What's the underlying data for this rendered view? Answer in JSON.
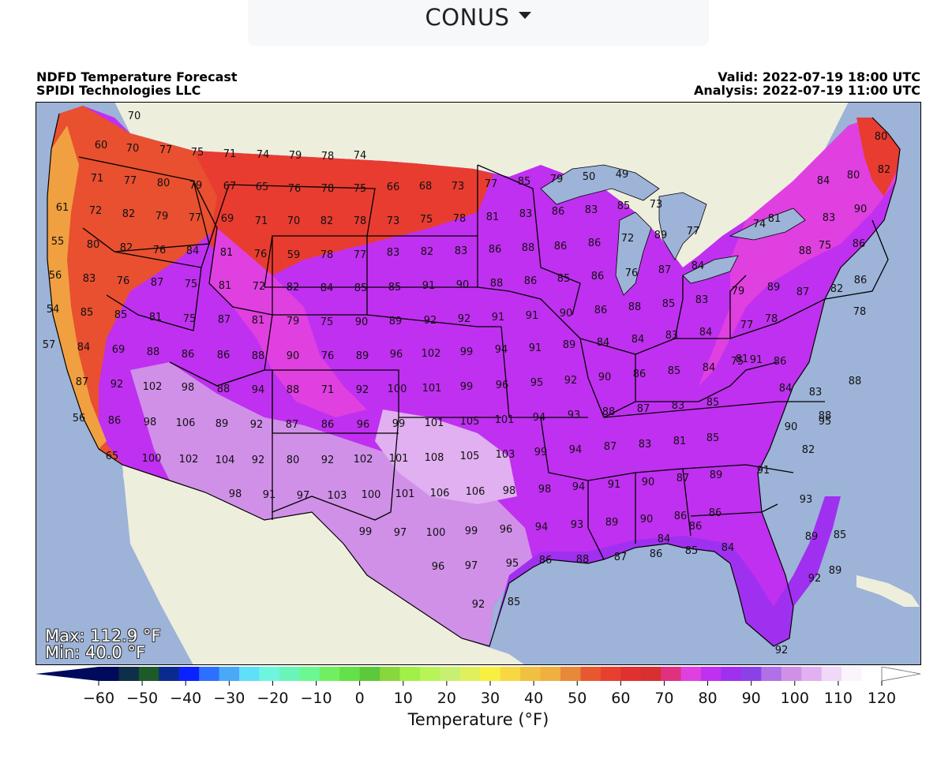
{
  "region_selector": {
    "value": "CONUS"
  },
  "header": {
    "title": "NDFD Temperature Forecast",
    "org": "SPIDI Technologies LLC",
    "valid": "Valid: 2022-07-19 18:00 UTC",
    "analysis": "Analysis: 2022-07-19 11:00 UTC"
  },
  "stats": {
    "max": "Max: 112.9 °F",
    "min": "Min: 40.0 °F"
  },
  "colorbar": {
    "label": "Temperature (°F)",
    "ticks": [
      "−60",
      "−50",
      "−40",
      "−30",
      "−20",
      "−10",
      "0",
      "10",
      "20",
      "30",
      "40",
      "50",
      "60",
      "70",
      "80",
      "90",
      "100",
      "110",
      "120"
    ],
    "colors": [
      "#000a5c",
      "#0d2f48",
      "#1c5a2a",
      "#0a2a8f",
      "#0a22ff",
      "#2d70ff",
      "#4aa8f8",
      "#5fe0f8",
      "#6ef5e0",
      "#6af5b8",
      "#6cf890",
      "#70f060",
      "#64e048",
      "#5cc83c",
      "#88d83c",
      "#a0f048",
      "#b8f458",
      "#c8f070",
      "#e0f05c",
      "#f8f040",
      "#f8d840",
      "#f0c040",
      "#f0b040",
      "#e88838",
      "#e85830",
      "#e84030",
      "#e03030",
      "#d83030",
      "#e03080",
      "#e040e0",
      "#c030f0",
      "#a030f0",
      "#8c40e8",
      "#b070e8",
      "#d090e8",
      "#e0b0f0",
      "#f0d8f8",
      "#fcf4fc",
      "#ffffff"
    ]
  },
  "city_temps": [
    {
      "label": "70",
      "v": 70
    },
    {
      "label": "60",
      "v": 60
    },
    {
      "label": "70",
      "v": 70
    },
    {
      "label": "77",
      "v": 77
    },
    {
      "label": "75",
      "v": 75
    },
    {
      "label": "71",
      "v": 71
    },
    {
      "label": "74",
      "v": 74
    },
    {
      "label": "79",
      "v": 79
    },
    {
      "label": "78",
      "v": 78
    },
    {
      "label": "74",
      "v": 74
    },
    {
      "label": "71",
      "v": 71
    },
    {
      "label": "77",
      "v": 77
    },
    {
      "label": "80",
      "v": 80
    },
    {
      "label": "79",
      "v": 79
    },
    {
      "label": "67",
      "v": 67
    },
    {
      "label": "65",
      "v": 65
    },
    {
      "label": "76",
      "v": 76
    },
    {
      "label": "78",
      "v": 78
    },
    {
      "label": "75",
      "v": 75
    },
    {
      "label": "66",
      "v": 66
    },
    {
      "label": "68",
      "v": 68
    },
    {
      "label": "73",
      "v": 73
    },
    {
      "label": "77",
      "v": 77
    },
    {
      "label": "85",
      "v": 85
    },
    {
      "label": "79",
      "v": 79
    },
    {
      "label": "50",
      "v": 50
    },
    {
      "label": "49",
      "v": 49
    },
    {
      "label": "61",
      "v": 61
    },
    {
      "label": "72",
      "v": 72
    },
    {
      "label": "82",
      "v": 82
    },
    {
      "label": "79",
      "v": 79
    },
    {
      "label": "77",
      "v": 77
    },
    {
      "label": "69",
      "v": 69
    },
    {
      "label": "71",
      "v": 71
    },
    {
      "label": "70",
      "v": 70
    },
    {
      "label": "82",
      "v": 82
    },
    {
      "label": "78",
      "v": 78
    },
    {
      "label": "73",
      "v": 73
    },
    {
      "label": "75",
      "v": 75
    },
    {
      "label": "78",
      "v": 78
    },
    {
      "label": "81",
      "v": 81
    },
    {
      "label": "83",
      "v": 83
    },
    {
      "label": "86",
      "v": 86
    },
    {
      "label": "83",
      "v": 83
    },
    {
      "label": "85",
      "v": 85
    },
    {
      "label": "73",
      "v": 73
    },
    {
      "label": "55",
      "v": 55
    },
    {
      "label": "80",
      "v": 80
    },
    {
      "label": "82",
      "v": 82
    },
    {
      "label": "76",
      "v": 76
    },
    {
      "label": "84",
      "v": 84
    },
    {
      "label": "81",
      "v": 81
    },
    {
      "label": "76",
      "v": 76
    },
    {
      "label": "59",
      "v": 59
    },
    {
      "label": "78",
      "v": 78
    },
    {
      "label": "77",
      "v": 77
    },
    {
      "label": "83",
      "v": 83
    },
    {
      "label": "82",
      "v": 82
    },
    {
      "label": "83",
      "v": 83
    },
    {
      "label": "86",
      "v": 86
    },
    {
      "label": "88",
      "v": 88
    },
    {
      "label": "86",
      "v": 86
    },
    {
      "label": "86",
      "v": 86
    },
    {
      "label": "72",
      "v": 72
    },
    {
      "label": "89",
      "v": 89
    },
    {
      "label": "77",
      "v": 77
    },
    {
      "label": "56",
      "v": 56
    },
    {
      "label": "83",
      "v": 83
    },
    {
      "label": "76",
      "v": 76
    },
    {
      "label": "87",
      "v": 87
    },
    {
      "label": "75",
      "v": 75
    },
    {
      "label": "81",
      "v": 81
    },
    {
      "label": "72",
      "v": 72
    },
    {
      "label": "82",
      "v": 82
    },
    {
      "label": "84",
      "v": 84
    },
    {
      "label": "85",
      "v": 85
    },
    {
      "label": "85",
      "v": 85
    },
    {
      "label": "91",
      "v": 91
    },
    {
      "label": "90",
      "v": 90
    },
    {
      "label": "88",
      "v": 88
    },
    {
      "label": "86",
      "v": 86
    },
    {
      "label": "85",
      "v": 85
    },
    {
      "label": "86",
      "v": 86
    },
    {
      "label": "76",
      "v": 76
    },
    {
      "label": "87",
      "v": 87
    },
    {
      "label": "84",
      "v": 84
    },
    {
      "label": "54",
      "v": 54
    },
    {
      "label": "85",
      "v": 85
    },
    {
      "label": "85",
      "v": 85
    },
    {
      "label": "81",
      "v": 81
    },
    {
      "label": "75",
      "v": 75
    },
    {
      "label": "87",
      "v": 87
    },
    {
      "label": "81",
      "v": 81
    },
    {
      "label": "79",
      "v": 79
    },
    {
      "label": "75",
      "v": 75
    },
    {
      "label": "90",
      "v": 90
    },
    {
      "label": "89",
      "v": 89
    },
    {
      "label": "92",
      "v": 92
    },
    {
      "label": "92",
      "v": 92
    },
    {
      "label": "91",
      "v": 91
    },
    {
      "label": "91",
      "v": 91
    },
    {
      "label": "90",
      "v": 90
    },
    {
      "label": "86",
      "v": 86
    },
    {
      "label": "88",
      "v": 88
    },
    {
      "label": "85",
      "v": 85
    },
    {
      "label": "83",
      "v": 83
    },
    {
      "label": "57",
      "v": 57
    },
    {
      "label": "84",
      "v": 84
    },
    {
      "label": "69",
      "v": 69
    },
    {
      "label": "88",
      "v": 88
    },
    {
      "label": "86",
      "v": 86
    },
    {
      "label": "86",
      "v": 86
    },
    {
      "label": "88",
      "v": 88
    },
    {
      "label": "90",
      "v": 90
    },
    {
      "label": "76",
      "v": 76
    },
    {
      "label": "89",
      "v": 89
    },
    {
      "label": "96",
      "v": 96
    },
    {
      "label": "102",
      "v": 102
    },
    {
      "label": "99",
      "v": 99
    },
    {
      "label": "94",
      "v": 94
    },
    {
      "label": "91",
      "v": 91
    },
    {
      "label": "89",
      "v": 89
    },
    {
      "label": "84",
      "v": 84
    },
    {
      "label": "84",
      "v": 84
    },
    {
      "label": "83",
      "v": 83
    },
    {
      "label": "84",
      "v": 84
    },
    {
      "label": "87",
      "v": 87
    },
    {
      "label": "92",
      "v": 92
    },
    {
      "label": "102",
      "v": 102
    },
    {
      "label": "98",
      "v": 98
    },
    {
      "label": "88",
      "v": 88
    },
    {
      "label": "94",
      "v": 94
    },
    {
      "label": "88",
      "v": 88
    },
    {
      "label": "71",
      "v": 71
    },
    {
      "label": "92",
      "v": 92
    },
    {
      "label": "100",
      "v": 100
    },
    {
      "label": "101",
      "v": 101
    },
    {
      "label": "99",
      "v": 99
    },
    {
      "label": "96",
      "v": 96
    },
    {
      "label": "95",
      "v": 95
    },
    {
      "label": "92",
      "v": 92
    },
    {
      "label": "90",
      "v": 90
    },
    {
      "label": "86",
      "v": 86
    },
    {
      "label": "85",
      "v": 85
    },
    {
      "label": "84",
      "v": 84
    },
    {
      "label": "56",
      "v": 56
    },
    {
      "label": "86",
      "v": 86
    },
    {
      "label": "98",
      "v": 98
    },
    {
      "label": "106",
      "v": 106
    },
    {
      "label": "89",
      "v": 89
    },
    {
      "label": "92",
      "v": 92
    },
    {
      "label": "87",
      "v": 87
    },
    {
      "label": "86",
      "v": 86
    },
    {
      "label": "96",
      "v": 96
    },
    {
      "label": "99",
      "v": 99
    },
    {
      "label": "101",
      "v": 101
    },
    {
      "label": "105",
      "v": 105
    },
    {
      "label": "101",
      "v": 101
    },
    {
      "label": "94",
      "v": 94
    },
    {
      "label": "93",
      "v": 93
    },
    {
      "label": "88",
      "v": 88
    },
    {
      "label": "87",
      "v": 87
    },
    {
      "label": "83",
      "v": 83
    },
    {
      "label": "85",
      "v": 85
    },
    {
      "label": "65",
      "v": 65
    },
    {
      "label": "100",
      "v": 100
    },
    {
      "label": "102",
      "v": 102
    },
    {
      "label": "104",
      "v": 104
    },
    {
      "label": "92",
      "v": 92
    },
    {
      "label": "80",
      "v": 80
    },
    {
      "label": "92",
      "v": 92
    },
    {
      "label": "102",
      "v": 102
    },
    {
      "label": "101",
      "v": 101
    },
    {
      "label": "108",
      "v": 108
    },
    {
      "label": "105",
      "v": 105
    },
    {
      "label": "103",
      "v": 103
    },
    {
      "label": "99",
      "v": 99
    },
    {
      "label": "94",
      "v": 94
    },
    {
      "label": "87",
      "v": 87
    },
    {
      "label": "83",
      "v": 83
    },
    {
      "label": "81",
      "v": 81
    },
    {
      "label": "85",
      "v": 85
    },
    {
      "label": "98",
      "v": 98
    },
    {
      "label": "91",
      "v": 91
    },
    {
      "label": "97",
      "v": 97
    },
    {
      "label": "103",
      "v": 103
    },
    {
      "label": "100",
      "v": 100
    },
    {
      "label": "101",
      "v": 101
    },
    {
      "label": "106",
      "v": 106
    },
    {
      "label": "106",
      "v": 106
    },
    {
      "label": "98",
      "v": 98
    },
    {
      "label": "98",
      "v": 98
    },
    {
      "label": "94",
      "v": 94
    },
    {
      "label": "91",
      "v": 91
    },
    {
      "label": "90",
      "v": 90
    },
    {
      "label": "87",
      "v": 87
    },
    {
      "label": "89",
      "v": 89
    },
    {
      "label": "99",
      "v": 99
    },
    {
      "label": "97",
      "v": 97
    },
    {
      "label": "100",
      "v": 100
    },
    {
      "label": "99",
      "v": 99
    },
    {
      "label": "96",
      "v": 96
    },
    {
      "label": "94",
      "v": 94
    },
    {
      "label": "93",
      "v": 93
    },
    {
      "label": "89",
      "v": 89
    },
    {
      "label": "90",
      "v": 90
    },
    {
      "label": "86",
      "v": 86
    },
    {
      "label": "86",
      "v": 86
    },
    {
      "label": "96",
      "v": 96
    },
    {
      "label": "97",
      "v": 97
    },
    {
      "label": "95",
      "v": 95
    },
    {
      "label": "86",
      "v": 86
    },
    {
      "label": "88",
      "v": 88
    },
    {
      "label": "87",
      "v": 87
    },
    {
      "label": "86",
      "v": 86
    },
    {
      "label": "85",
      "v": 85
    },
    {
      "label": "84",
      "v": 84
    },
    {
      "label": "92",
      "v": 92
    },
    {
      "label": "85",
      "v": 85
    },
    {
      "label": "80",
      "v": 80
    },
    {
      "label": "82",
      "v": 82
    },
    {
      "label": "80",
      "v": 80
    },
    {
      "label": "84",
      "v": 84
    },
    {
      "label": "90",
      "v": 90
    },
    {
      "label": "81",
      "v": 81
    },
    {
      "label": "83",
      "v": 83
    },
    {
      "label": "74",
      "v": 74
    },
    {
      "label": "75",
      "v": 75
    },
    {
      "label": "86",
      "v": 86
    },
    {
      "label": "88",
      "v": 88
    },
    {
      "label": "86",
      "v": 86
    },
    {
      "label": "82",
      "v": 82
    },
    {
      "label": "78",
      "v": 78
    },
    {
      "label": "89",
      "v": 89
    },
    {
      "label": "79",
      "v": 79
    },
    {
      "label": "87",
      "v": 87
    },
    {
      "label": "78",
      "v": 78
    },
    {
      "label": "77",
      "v": 77
    },
    {
      "label": "81",
      "v": 81
    },
    {
      "label": "75",
      "v": 75
    },
    {
      "label": "86",
      "v": 86
    },
    {
      "label": "91",
      "v": 91
    },
    {
      "label": "84",
      "v": 84
    },
    {
      "label": "83",
      "v": 83
    },
    {
      "label": "88",
      "v": 88
    },
    {
      "label": "95",
      "v": 95
    },
    {
      "label": "90",
      "v": 90
    },
    {
      "label": "82",
      "v": 82
    },
    {
      "label": "88",
      "v": 88
    },
    {
      "label": "91",
      "v": 91
    },
    {
      "label": "93",
      "v": 93
    },
    {
      "label": "89",
      "v": 89
    },
    {
      "label": "85",
      "v": 85
    },
    {
      "label": "89",
      "v": 89
    },
    {
      "label": "92",
      "v": 92
    },
    {
      "label": "92",
      "v": 92
    },
    {
      "label": "86",
      "v": 86
    },
    {
      "label": "84",
      "v": 84
    }
  ]
}
